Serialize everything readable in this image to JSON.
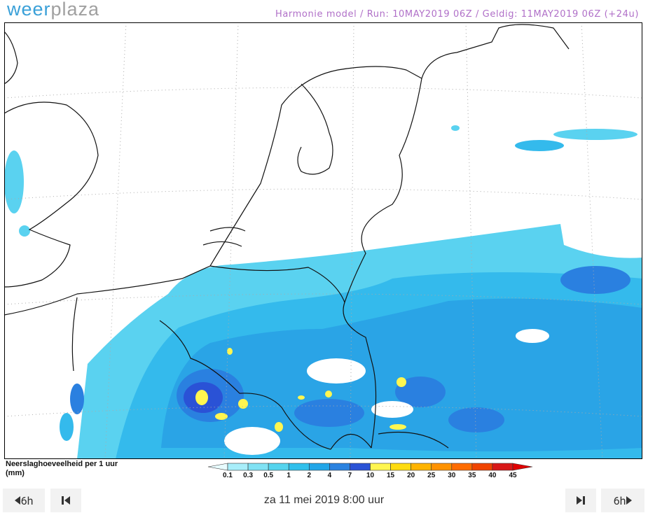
{
  "header": {
    "logo_part1": "weer",
    "logo_part2": "plaza",
    "model_info": "Harmonie model / Run: 10MAY2019 06Z / Geldig: 11MAY2019 06Z (+24u)"
  },
  "legend": {
    "title_line1": "Neerslaghoeveelheid per 1 uur",
    "title_line2": "(mm)",
    "ticks": [
      0.1,
      0.3,
      0.5,
      1,
      2,
      4,
      7,
      10,
      15,
      20,
      25,
      30,
      35,
      40,
      45
    ],
    "colors": [
      "#e8fcff",
      "#a8eefa",
      "#80e2f4",
      "#55d4ee",
      "#30c0ec",
      "#22a6e8",
      "#2a82e0",
      "#2a52d6",
      "#fff650",
      "#ffdc10",
      "#ffb400",
      "#ff9200",
      "#ff6c00",
      "#f04400",
      "#d81818",
      "#e00000"
    ]
  },
  "controls": {
    "back_step": "6h",
    "datetime": "za 11 mei 2019 8:00 uur",
    "forward_step": "6h"
  }
}
